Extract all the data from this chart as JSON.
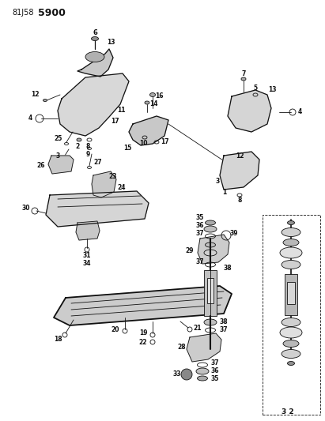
{
  "title_part1": "81J58",
  "title_part2": "5900",
  "bg_color": "#ffffff",
  "fig_width": 4.11,
  "fig_height": 5.33,
  "dpi": 100
}
